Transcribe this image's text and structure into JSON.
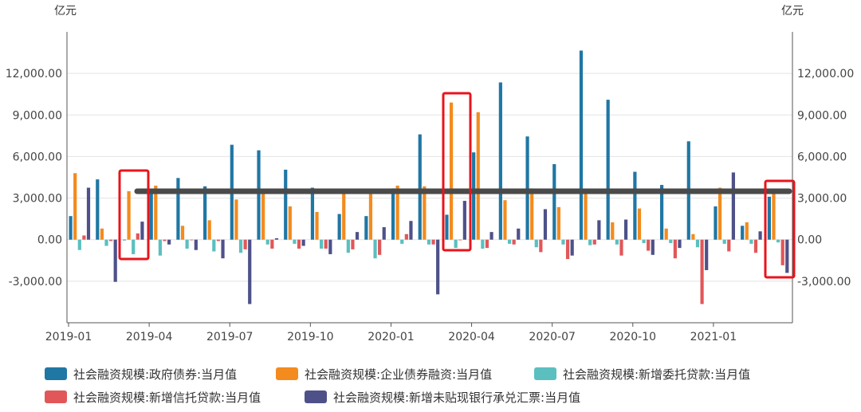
{
  "chart_data": {
    "type": "bar",
    "unit_left": "亿元",
    "unit_right": "亿元",
    "ylim": [
      -6000,
      15000
    ],
    "y_ticks": [
      "-3,000.00",
      "0.00",
      "3,000.00",
      "6,000.00",
      "9,000.00",
      "12,000.00"
    ],
    "y_tick_values": [
      -3000,
      0,
      3000,
      6000,
      9000,
      12000
    ],
    "x_tick_labels": [
      "2019-01",
      "2019-04",
      "2019-07",
      "2019-10",
      "2020-01",
      "2020-04",
      "2020-07",
      "2020-10",
      "2021-01"
    ],
    "x_tick_indices": [
      0,
      3,
      6,
      9,
      12,
      15,
      18,
      21,
      24
    ],
    "categories": [
      "2019-01",
      "2019-02",
      "2019-03",
      "2019-04",
      "2019-05",
      "2019-06",
      "2019-07",
      "2019-08",
      "2019-09",
      "2019-10",
      "2019-11",
      "2019-12",
      "2020-01",
      "2020-02",
      "2020-03",
      "2020-04",
      "2020-05",
      "2020-06",
      "2020-07",
      "2020-08",
      "2020-09",
      "2020-10",
      "2020-11",
      "2020-12",
      "2021-01",
      "2021-02",
      "2021-03"
    ],
    "series": [
      {
        "name": "社会融资规模:政府债券:当月值",
        "color": "#1f77a4",
        "values": [
          1700,
          4350,
          -1,
          3400,
          4450,
          3850,
          6850,
          6450,
          5050,
          3750,
          1850,
          1700,
          3700,
          7600,
          1800,
          6300,
          11350,
          7450,
          5450,
          13650,
          10100,
          4900,
          3950,
          7100,
          2400,
          1000,
          3100
        ]
      },
      {
        "name": "社会融资规模:企业债券融资:当月值",
        "color": "#f38b1e",
        "values": [
          4800,
          800,
          3500,
          3900,
          1000,
          1400,
          2900,
          3300,
          2400,
          2000,
          3400,
          3600,
          3900,
          3850,
          9900,
          9200,
          2850,
          3700,
          2350,
          3400,
          1250,
          2250,
          800,
          400,
          3750,
          1250,
          3500
        ]
      },
      {
        "name": "社会融资规模:新增委托贷款:当月值",
        "color": "#5bbfbf",
        "values": [
          -750,
          -450,
          -1050,
          -1150,
          -650,
          -850,
          -950,
          -350,
          -300,
          -650,
          -950,
          -1350,
          -300,
          -350,
          -600,
          -650,
          -300,
          -550,
          -350,
          -400,
          -350,
          -250,
          -250,
          -550,
          -300,
          -300,
          -200
        ]
      },
      {
        "name": "社会融资规模:新增信托贷款:当月值",
        "color": "#e15759",
        "values": [
          300,
          -100,
          450,
          -100,
          0,
          -100,
          -700,
          -650,
          -650,
          -650,
          -700,
          -1100,
          400,
          -350,
          0,
          -600,
          -350,
          -900,
          -1400,
          -350,
          -1150,
          -800,
          -1350,
          -4650,
          -850,
          -950,
          -1850
        ]
      },
      {
        "name": "社会融资规模:新增未贴现银行承兑汇票:当月值",
        "color": "#4e5189",
        "values": [
          3750,
          -3050,
          1300,
          -350,
          -750,
          -1350,
          -4650,
          100,
          -450,
          -1050,
          550,
          900,
          1350,
          -3950,
          2800,
          550,
          800,
          2200,
          -1150,
          1400,
          1450,
          -1100,
          -600,
          -2200,
          4850,
          600,
          -2400
        ]
      }
    ],
    "legend_position": "bottom",
    "grid": true
  }
}
